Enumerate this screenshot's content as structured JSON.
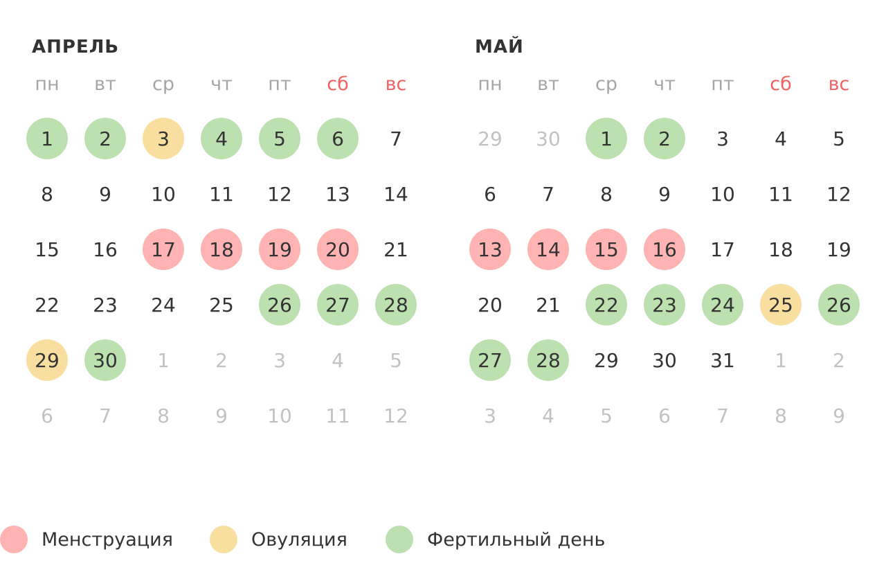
{
  "colors": {
    "menstruation": "#ffb3b3",
    "ovulation": "#f8dfa0",
    "fertile": "#bce0b0",
    "weekend_label": "#f0625f",
    "in_month_text": "#333333",
    "out_month_text": "#c2c2c2",
    "weekday_text": "#a6a6a6"
  },
  "weekdays": [
    {
      "label": "пн",
      "weekend": false
    },
    {
      "label": "вт",
      "weekend": false
    },
    {
      "label": "ср",
      "weekend": false
    },
    {
      "label": "чт",
      "weekend": false
    },
    {
      "label": "пт",
      "weekend": false
    },
    {
      "label": "сб",
      "weekend": true
    },
    {
      "label": "вс",
      "weekend": true
    }
  ],
  "months": [
    {
      "title": "АПРЕЛЬ",
      "weeks": [
        [
          {
            "d": "1",
            "t": "fertile"
          },
          {
            "d": "2",
            "t": "fertile"
          },
          {
            "d": "3",
            "t": "ovulation"
          },
          {
            "d": "4",
            "t": "fertile"
          },
          {
            "d": "5",
            "t": "fertile"
          },
          {
            "d": "6",
            "t": "fertile"
          },
          {
            "d": "7"
          }
        ],
        [
          {
            "d": "8"
          },
          {
            "d": "9"
          },
          {
            "d": "10"
          },
          {
            "d": "11"
          },
          {
            "d": "12"
          },
          {
            "d": "13"
          },
          {
            "d": "14"
          }
        ],
        [
          {
            "d": "15"
          },
          {
            "d": "16"
          },
          {
            "d": "17",
            "t": "menstruation"
          },
          {
            "d": "18",
            "t": "menstruation"
          },
          {
            "d": "19",
            "t": "menstruation"
          },
          {
            "d": "20",
            "t": "menstruation"
          },
          {
            "d": "21"
          }
        ],
        [
          {
            "d": "22"
          },
          {
            "d": "23"
          },
          {
            "d": "24"
          },
          {
            "d": "25"
          },
          {
            "d": "26",
            "t": "fertile"
          },
          {
            "d": "27",
            "t": "fertile"
          },
          {
            "d": "28",
            "t": "fertile"
          }
        ],
        [
          {
            "d": "29",
            "t": "ovulation"
          },
          {
            "d": "30",
            "t": "fertile"
          },
          {
            "d": "1",
            "out": true
          },
          {
            "d": "2",
            "out": true
          },
          {
            "d": "3",
            "out": true
          },
          {
            "d": "4",
            "out": true
          },
          {
            "d": "5",
            "out": true
          }
        ],
        [
          {
            "d": "6",
            "out": true
          },
          {
            "d": "7",
            "out": true
          },
          {
            "d": "8",
            "out": true
          },
          {
            "d": "9",
            "out": true
          },
          {
            "d": "10",
            "out": true
          },
          {
            "d": "11",
            "out": true
          },
          {
            "d": "12",
            "out": true
          }
        ]
      ]
    },
    {
      "title": "МАЙ",
      "weeks": [
        [
          {
            "d": "29",
            "out": true
          },
          {
            "d": "30",
            "out": true
          },
          {
            "d": "1",
            "t": "fertile"
          },
          {
            "d": "2",
            "t": "fertile"
          },
          {
            "d": "3"
          },
          {
            "d": "4"
          },
          {
            "d": "5"
          }
        ],
        [
          {
            "d": "6"
          },
          {
            "d": "7"
          },
          {
            "d": "8"
          },
          {
            "d": "9"
          },
          {
            "d": "10"
          },
          {
            "d": "11"
          },
          {
            "d": "12"
          }
        ],
        [
          {
            "d": "13",
            "t": "menstruation"
          },
          {
            "d": "14",
            "t": "menstruation"
          },
          {
            "d": "15",
            "t": "menstruation"
          },
          {
            "d": "16",
            "t": "menstruation"
          },
          {
            "d": "17"
          },
          {
            "d": "18"
          },
          {
            "d": "19"
          }
        ],
        [
          {
            "d": "20"
          },
          {
            "d": "21"
          },
          {
            "d": "22",
            "t": "fertile"
          },
          {
            "d": "23",
            "t": "fertile"
          },
          {
            "d": "24",
            "t": "fertile"
          },
          {
            "d": "25",
            "t": "ovulation"
          },
          {
            "d": "26",
            "t": "fertile"
          }
        ],
        [
          {
            "d": "27",
            "t": "fertile"
          },
          {
            "d": "28",
            "t": "fertile"
          },
          {
            "d": "29"
          },
          {
            "d": "30"
          },
          {
            "d": "31"
          },
          {
            "d": "1",
            "out": true
          },
          {
            "d": "2",
            "out": true
          }
        ],
        [
          {
            "d": "3",
            "out": true
          },
          {
            "d": "4",
            "out": true
          },
          {
            "d": "5",
            "out": true
          },
          {
            "d": "6",
            "out": true
          },
          {
            "d": "7",
            "out": true
          },
          {
            "d": "8",
            "out": true
          },
          {
            "d": "9",
            "out": true
          }
        ]
      ]
    }
  ],
  "legend": [
    {
      "label": "Менструация",
      "type": "menstruation"
    },
    {
      "label": "Овуляция",
      "type": "ovulation"
    },
    {
      "label": "Фертильный день",
      "type": "fertile"
    }
  ]
}
